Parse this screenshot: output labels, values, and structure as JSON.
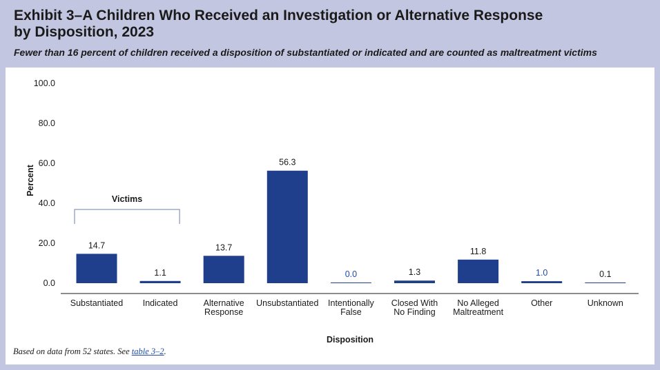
{
  "header": {
    "title": "Exhibit 3–A Children Who Received an Investigation or Alternative Response\nby Disposition, 2023",
    "subtitle": "Fewer than 16 percent of children received a disposition of substantiated or indicated and are counted as maltreatment victims"
  },
  "note": {
    "prefix": "Based on data from 52 states. See ",
    "link": "table 3–2",
    "suffix": "."
  },
  "colors": {
    "bar": "#1f3f8c",
    "highlight_label": "#1f4aa8",
    "bracket": "#6a7fb3"
  },
  "chart_data": {
    "type": "bar",
    "categories": [
      [
        "Substantiated"
      ],
      [
        "Indicated"
      ],
      [
        "Alternative",
        "Response"
      ],
      [
        "Unsubstantiated"
      ],
      [
        "Intentionally",
        "False"
      ],
      [
        "Closed With",
        "No Finding"
      ],
      [
        "No Alleged",
        "Maltreatment"
      ],
      [
        "Other"
      ],
      [
        "Unknown"
      ]
    ],
    "values": [
      14.7,
      1.1,
      13.7,
      56.3,
      0.0,
      1.3,
      11.8,
      1.0,
      0.1
    ],
    "value_labels": [
      "14.7",
      "1.1",
      "13.7",
      "56.3",
      "0.0",
      "1.3",
      "11.8",
      "1.0",
      "0.1"
    ],
    "highlighted_labels": [
      4,
      7
    ],
    "xlabel": "Disposition",
    "ylabel": "Percent",
    "ylim": [
      0,
      100
    ],
    "yticks": [
      "0.0",
      "20.0",
      "40.0",
      "60.0",
      "80.0",
      "100.0"
    ],
    "grid": false,
    "annotation": {
      "text": "Victims",
      "spans": [
        0,
        1
      ]
    }
  }
}
